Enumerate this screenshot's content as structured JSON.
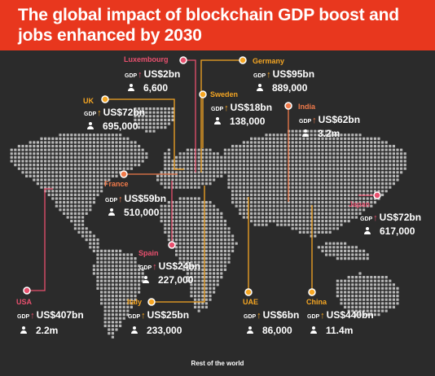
{
  "title": "The global impact of blockchain GDP boost and jobs enhanced by 2030",
  "labels": {
    "gdp": "GDP",
    "arrow": "↑"
  },
  "colors": {
    "banner": "#e8371e",
    "background": "#2b2b2b",
    "pink": "#e8506e",
    "orange": "#f5a623",
    "coral": "#f07a4a"
  },
  "countries": [
    {
      "name": "Luxembourg",
      "gdp": "US$2bn",
      "jobs": "6,600",
      "color": "#e8506e"
    },
    {
      "name": "Germany",
      "gdp": "US$95bn",
      "jobs": "889,000",
      "color": "#f5a623"
    },
    {
      "name": "UK",
      "gdp": "US$72bn",
      "jobs": "695,000",
      "color": "#f5a623"
    },
    {
      "name": "Sweden",
      "gdp": "US$18bn",
      "jobs": "138,000",
      "color": "#f5a623"
    },
    {
      "name": "India",
      "gdp": "US$62bn",
      "jobs": "3.2m",
      "color": "#f07a4a"
    },
    {
      "name": "France",
      "gdp": "US$59bn",
      "jobs": "510,000",
      "color": "#f07a4a"
    },
    {
      "name": "Japan",
      "gdp": "US$72bn",
      "jobs": "617,000",
      "color": "#e8506e"
    },
    {
      "name": "Spain",
      "gdp": "US$24bn",
      "jobs": "227,000",
      "color": "#e8506e"
    },
    {
      "name": "USA",
      "gdp": "US$407bn",
      "jobs": "2.2m",
      "color": "#e8506e"
    },
    {
      "name": "Italy",
      "gdp": "US$25bn",
      "jobs": "233,000",
      "color": "#f5a623"
    },
    {
      "name": "UAE",
      "gdp": "US$6bn",
      "jobs": "86,000",
      "color": "#f5a623"
    },
    {
      "name": "China",
      "gdp": "US$440bn",
      "jobs": "11.4m",
      "color": "#f5a623"
    }
  ],
  "footer": "Rest of the world"
}
